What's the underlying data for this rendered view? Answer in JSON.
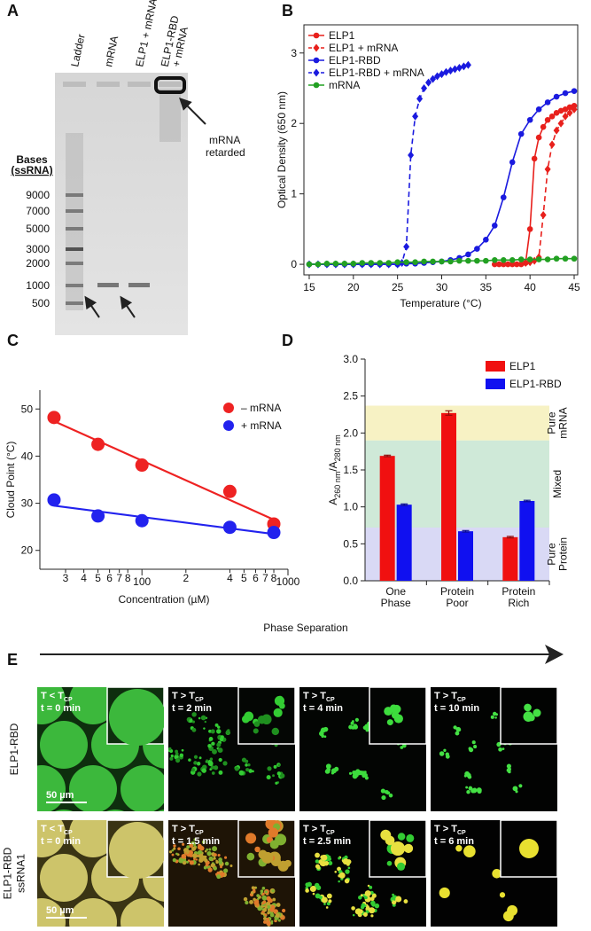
{
  "panel_labels": [
    "A",
    "B",
    "C",
    "D",
    "E"
  ],
  "gel": {
    "lanes": [
      [
        "Ladder"
      ],
      [
        "mRNA"
      ],
      [
        "ELP1 + mRNA"
      ],
      [
        "ELP1-RBD",
        "+ mRNA"
      ]
    ],
    "ladder_title": [
      "Bases",
      "(ssRNA)"
    ],
    "ladder_sizes": [
      9000,
      7000,
      5000,
      3000,
      2000,
      1000,
      500
    ],
    "annotation": [
      "mRNA",
      "retarded"
    ]
  },
  "chart_data": [
    {
      "type": "line",
      "xlabel": "Temperature (°C)",
      "ylabel": "Optical Density (650 nm)",
      "xlim": [
        14.4,
        45.4
      ],
      "xticks": [
        15,
        20,
        25,
        30,
        35,
        40,
        45
      ],
      "ylim": [
        -0.15,
        3.4
      ],
      "yticks": [
        0,
        1,
        2,
        3
      ],
      "legend": "upper left",
      "series": [
        {
          "name": "ELP1",
          "color": "#e8201c",
          "marker": "circle",
          "linestyle": "solid",
          "x": [
            36,
            36.5,
            37,
            37.5,
            38,
            38.5,
            39,
            39.5,
            40,
            40.5,
            41,
            41.5,
            42,
            42.5,
            43,
            43.5,
            44,
            44.5,
            45
          ],
          "values": [
            0,
            0,
            0,
            0,
            0,
            0,
            0,
            0.02,
            0.5,
            1.5,
            1.8,
            1.95,
            2.05,
            2.1,
            2.15,
            2.18,
            2.2,
            2.23,
            2.25
          ]
        },
        {
          "name": "ELP1 + mRNA",
          "color": "#e8201c",
          "marker": "diamond",
          "linestyle": "dashed",
          "x": [
            39.5,
            40,
            40.5,
            41,
            41.5,
            42,
            42.5,
            43,
            43.5,
            44,
            44.5,
            45
          ],
          "values": [
            0.02,
            0.03,
            0.05,
            0.1,
            0.7,
            1.35,
            1.7,
            1.9,
            2.0,
            2.1,
            2.15,
            2.2
          ]
        },
        {
          "name": "ELP1-RBD",
          "color": "#1a1adf",
          "marker": "circle",
          "linestyle": "solid",
          "x": [
            15,
            16,
            17,
            18,
            19,
            20,
            21,
            22,
            23,
            24,
            25,
            26,
            27,
            28,
            29,
            30,
            31,
            32,
            33,
            34,
            35,
            36,
            37,
            38,
            39,
            40,
            41,
            42,
            43,
            44,
            45
          ],
          "values": [
            0,
            0,
            0,
            0,
            0,
            0,
            0,
            0,
            0,
            0,
            0,
            0.01,
            0.01,
            0.02,
            0.03,
            0.04,
            0.06,
            0.09,
            0.14,
            0.22,
            0.35,
            0.55,
            0.95,
            1.45,
            1.85,
            2.05,
            2.2,
            2.3,
            2.38,
            2.43,
            2.46
          ]
        },
        {
          "name": "ELP1-RBD + mRNA",
          "color": "#1a1adf",
          "marker": "diamond",
          "linestyle": "dashed",
          "x": [
            15,
            16,
            17,
            18,
            19,
            20,
            21,
            22,
            23,
            24,
            25,
            25.5,
            26,
            26.5,
            27,
            27.5,
            28,
            28.5,
            29,
            29.5,
            30,
            30.5,
            31,
            31.5,
            32,
            32.5,
            33
          ],
          "values": [
            0,
            0,
            0,
            0,
            0,
            0,
            0,
            0,
            0,
            0,
            0,
            0.02,
            0.25,
            1.55,
            2.1,
            2.35,
            2.5,
            2.58,
            2.63,
            2.67,
            2.7,
            2.73,
            2.75,
            2.77,
            2.79,
            2.81,
            2.83
          ]
        },
        {
          "name": "mRNA",
          "color": "#22a022",
          "marker": "circle",
          "linestyle": "solid",
          "x": [
            15,
            16,
            17,
            18,
            19,
            20,
            21,
            22,
            23,
            24,
            25,
            26,
            27,
            28,
            29,
            30,
            31,
            32,
            33,
            34,
            35,
            36,
            37,
            38,
            39,
            40,
            41,
            42,
            43,
            44,
            45
          ],
          "values": [
            0,
            0,
            0.01,
            0.01,
            0.01,
            0.01,
            0.02,
            0.02,
            0.02,
            0.02,
            0.03,
            0.03,
            0.03,
            0.04,
            0.04,
            0.04,
            0.04,
            0.05,
            0.05,
            0.05,
            0.05,
            0.06,
            0.06,
            0.06,
            0.07,
            0.07,
            0.07,
            0.07,
            0.08,
            0.08,
            0.08
          ]
        }
      ]
    },
    {
      "type": "scatter",
      "xlabel": "Concentration (µM)",
      "ylabel": "Cloud Point (°C)",
      "xscale": "log",
      "xlim": [
        20,
        1000
      ],
      "xticks": [
        {
          "value": 30,
          "label": "3"
        },
        {
          "value": 40,
          "label": "4"
        },
        {
          "value": 50,
          "label": "5"
        },
        {
          "value": 60,
          "label": "6"
        },
        {
          "value": 70,
          "label": "7"
        },
        {
          "value": 80,
          "label": "8"
        },
        100,
        {
          "value": 200,
          "label": "2"
        },
        {
          "value": 400,
          "label": "4"
        },
        {
          "value": 500,
          "label": "5"
        },
        {
          "value": 600,
          "label": "6"
        },
        {
          "value": 700,
          "label": "7"
        },
        {
          "value": 800,
          "label": "8"
        },
        1000
      ],
      "ylim": [
        16,
        54
      ],
      "yticks": [
        20,
        30,
        40,
        50
      ],
      "fit": true,
      "legend": "upper right",
      "x": [
        25,
        50,
        100,
        400,
        800
      ],
      "series": [
        {
          "name": "– mRNA",
          "color": "#ee2222",
          "values": [
            48.2,
            42.5,
            38.1,
            32.5,
            25.6
          ]
        },
        {
          "name": "+ mRNA",
          "color": "#2222ee",
          "values": [
            30.7,
            27.3,
            26.3,
            24.9,
            23.8
          ]
        }
      ]
    },
    {
      "type": "bar",
      "ylabel_parts": [
        "A",
        "260 nm",
        "/A",
        "280 nm"
      ],
      "categories": [
        [
          "One",
          "Phase"
        ],
        [
          "Protein",
          "Poor"
        ],
        [
          "Protein",
          "Rich"
        ]
      ],
      "ylim": [
        0,
        3.0
      ],
      "yticks": [
        {
          "value": 0,
          "label": "0.0"
        },
        0.5,
        {
          "value": 1,
          "label": "1.0"
        },
        1.5,
        {
          "value": 2,
          "label": "2.0"
        },
        2.5,
        {
          "value": 3,
          "label": "3.0"
        }
      ],
      "legend": "upper right",
      "bands": [
        {
          "label": [
            "Pure",
            "Protein"
          ],
          "from": 0,
          "to": 0.72,
          "color": "#d9d9f5"
        },
        {
          "label": [
            "Mixed"
          ],
          "from": 0.72,
          "to": 1.9,
          "color": "#cfe9d8"
        },
        {
          "label": [
            "Pure",
            "mRNA"
          ],
          "from": 1.9,
          "to": 2.37,
          "color": "#f7f2c4"
        }
      ],
      "series": [
        {
          "name": "ELP1",
          "color": "#f01010",
          "values": [
            1.69,
            2.27,
            0.59
          ],
          "errors": [
            0.01,
            0.03,
            0.01
          ]
        },
        {
          "name": "ELP1-RBD",
          "color": "#1010f0",
          "values": [
            1.03,
            0.67,
            1.08
          ],
          "errors": [
            0.01,
            0.01,
            0.01
          ]
        }
      ]
    }
  ],
  "microscopy": {
    "title": "Phase Separation",
    "rows": [
      {
        "labels": [
          {
            "text": "ELP1-RBD",
            "color": "#22b022"
          }
        ],
        "scale_bar": "50 µm",
        "images": [
          {
            "condition": "T < T",
            "sub": "CP",
            "time": "t = 0 min"
          },
          {
            "condition": "T > T",
            "sub": "CP",
            "time": "t = 2 min"
          },
          {
            "condition": "T > T",
            "sub": "CP",
            "time": "t = 4 min"
          },
          {
            "condition": "T > T",
            "sub": "CP",
            "time": "t = 10 min"
          }
        ]
      },
      {
        "labels": [
          {
            "text": "ELP1-RBD",
            "color": "#22b022"
          },
          {
            "text": "ssRNA1",
            "color": "#e02020"
          }
        ],
        "scale_bar": "50 µm",
        "images": [
          {
            "condition": "T < T",
            "sub": "CP",
            "time": "t = 0 min"
          },
          {
            "condition": "T > T",
            "sub": "CP",
            "time": "t = 1.5 min"
          },
          {
            "condition": "T > T",
            "sub": "CP",
            "time": "t = 2.5 min"
          },
          {
            "condition": "T > T",
            "sub": "CP",
            "time": "t = 6 min"
          }
        ]
      }
    ]
  }
}
